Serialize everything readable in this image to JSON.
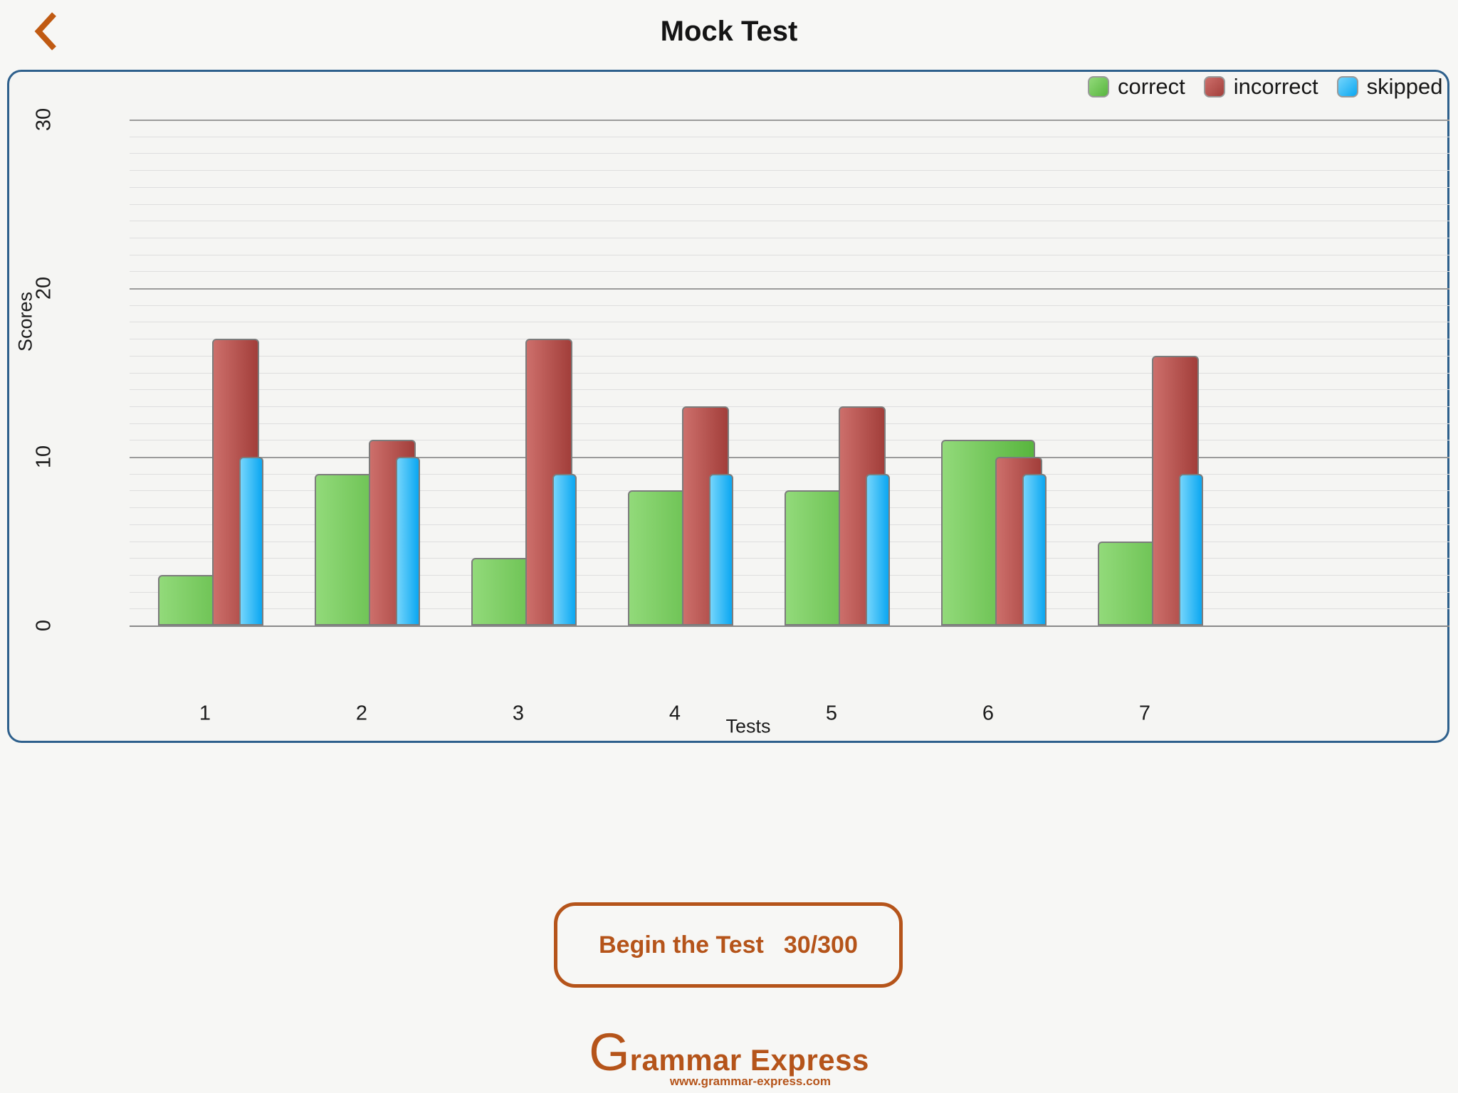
{
  "header": {
    "title": "Mock Test"
  },
  "chart_data": {
    "type": "bar",
    "title": "",
    "categories": [
      "1",
      "2",
      "3",
      "4",
      "5",
      "6",
      "7"
    ],
    "series": [
      {
        "name": "correct",
        "values": [
          3,
          9,
          4,
          8,
          8,
          11,
          5
        ],
        "color_start": "#92da7a",
        "color_end": "#58b53e"
      },
      {
        "name": "incorrect",
        "values": [
          17,
          11,
          17,
          13,
          13,
          10,
          16
        ],
        "color_start": "#cd6f6b",
        "color_end": "#a23e3a"
      },
      {
        "name": "skipped",
        "values": [
          10,
          10,
          9,
          9,
          9,
          9,
          9
        ],
        "color_start": "#74d5fc",
        "color_end": "#0ba7f1"
      }
    ],
    "xlabel": "Tests",
    "ylabel": "Scores",
    "ylim": [
      0,
      30
    ],
    "yticks": [
      0,
      10,
      20,
      30
    ],
    "grid": "horizontal, minor every 1, major every 10",
    "legend_position": "top-right",
    "bar_style": "overlapping grouped bars, rounded tops, gray stroke"
  },
  "button": {
    "label": "Begin the Test",
    "score": "30/300"
  },
  "footer": {
    "logo_g": "G",
    "logo_rest": "rammar Express",
    "url": "www.grammar-express.com"
  },
  "colors": {
    "accent_orange": "#b5541a",
    "chevron_orange": "#c05a12",
    "panel_border_blue": "#2e608c",
    "background": "#f7f7f5",
    "grid_minor": "#dedede",
    "grid_major": "#9b9b9b",
    "bar_stroke": "#7c7c7c"
  }
}
